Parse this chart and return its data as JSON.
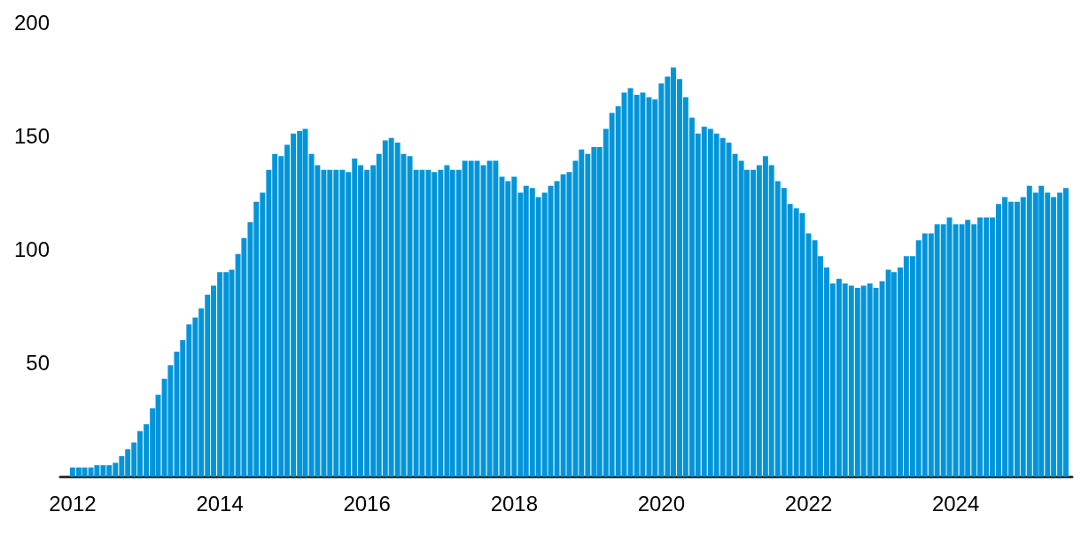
{
  "chart_data": {
    "type": "bar",
    "color": "#0095da",
    "x": [
      "2012-01",
      "2012-02",
      "2012-03",
      "2012-04",
      "2012-05",
      "2012-06",
      "2012-07",
      "2012-08",
      "2012-09",
      "2012-10",
      "2012-11",
      "2012-12",
      "2013-01",
      "2013-02",
      "2013-03",
      "2013-04",
      "2013-05",
      "2013-06",
      "2013-07",
      "2013-08",
      "2013-09",
      "2013-10",
      "2013-11",
      "2013-12",
      "2014-01",
      "2014-02",
      "2014-03",
      "2014-04",
      "2014-05",
      "2014-06",
      "2014-07",
      "2014-08",
      "2014-09",
      "2014-10",
      "2014-11",
      "2014-12",
      "2015-01",
      "2015-02",
      "2015-03",
      "2015-04",
      "2015-05",
      "2015-06",
      "2015-07",
      "2015-08",
      "2015-09",
      "2015-10",
      "2015-11",
      "2015-12",
      "2016-01",
      "2016-02",
      "2016-03",
      "2016-04",
      "2016-05",
      "2016-06",
      "2016-07",
      "2016-08",
      "2016-09",
      "2016-10",
      "2016-11",
      "2016-12",
      "2017-01",
      "2017-02",
      "2017-03",
      "2017-04",
      "2017-05",
      "2017-06",
      "2017-07",
      "2017-08",
      "2017-09",
      "2017-10",
      "2017-11",
      "2017-12",
      "2018-01",
      "2018-02",
      "2018-03",
      "2018-04",
      "2018-05",
      "2018-06",
      "2018-07",
      "2018-08",
      "2018-09",
      "2018-10",
      "2018-11",
      "2018-12",
      "2019-01",
      "2019-02",
      "2019-03",
      "2019-04",
      "2019-05",
      "2019-06",
      "2019-07",
      "2019-08",
      "2019-09",
      "2019-10",
      "2019-11",
      "2019-12",
      "2020-01",
      "2020-02",
      "2020-03",
      "2020-04",
      "2020-05",
      "2020-06",
      "2020-07",
      "2020-08",
      "2020-09",
      "2020-10",
      "2020-11",
      "2020-12",
      "2021-01",
      "2021-02",
      "2021-03",
      "2021-04",
      "2021-05",
      "2021-06",
      "2021-07",
      "2021-08",
      "2021-09",
      "2021-10",
      "2021-11",
      "2021-12",
      "2022-01",
      "2022-02",
      "2022-03",
      "2022-04",
      "2022-05",
      "2022-06",
      "2022-07",
      "2022-08",
      "2022-09",
      "2022-10",
      "2022-11",
      "2022-12",
      "2023-01",
      "2023-02",
      "2023-03",
      "2023-04",
      "2023-05",
      "2023-06",
      "2023-07",
      "2023-08",
      "2023-09",
      "2023-10",
      "2023-11",
      "2023-12",
      "2024-01",
      "2024-02",
      "2024-03",
      "2024-04",
      "2024-05",
      "2024-06",
      "2024-07",
      "2024-08",
      "2024-09",
      "2024-10",
      "2024-11",
      "2024-12",
      "2025-01",
      "2025-02",
      "2025-03",
      "2025-04",
      "2025-05",
      "2025-06",
      "2025-07"
    ],
    "values": [
      4,
      4,
      4,
      4,
      5,
      5,
      5,
      6,
      9,
      12,
      15,
      20,
      23,
      30,
      36,
      43,
      49,
      55,
      60,
      67,
      70,
      74,
      80,
      84,
      90,
      90,
      91,
      98,
      105,
      112,
      121,
      125,
      135,
      142,
      141,
      146,
      151,
      152,
      153,
      142,
      137,
      135,
      135,
      135,
      135,
      134,
      140,
      137,
      135,
      137,
      142,
      148,
      149,
      147,
      142,
      141,
      135,
      135,
      135,
      134,
      135,
      137,
      135,
      135,
      139,
      139,
      139,
      137,
      139,
      139,
      132,
      130,
      132,
      125,
      128,
      127,
      123,
      125,
      128,
      130,
      133,
      134,
      139,
      144,
      142,
      145,
      145,
      153,
      160,
      163,
      169,
      171,
      168,
      169,
      167,
      166,
      173,
      176,
      180,
      175,
      167,
      158,
      151,
      154,
      153,
      151,
      149,
      147,
      142,
      139,
      135,
      135,
      137,
      141,
      137,
      130,
      127,
      120,
      118,
      116,
      107,
      104,
      97,
      92,
      85,
      87,
      85,
      84,
      83,
      84,
      85,
      83,
      86,
      91,
      90,
      92,
      97,
      97,
      104,
      107,
      107,
      111,
      111,
      114,
      111,
      111,
      113,
      111,
      114,
      114,
      114,
      120,
      123,
      121,
      121,
      123,
      128,
      125,
      128,
      125,
      123,
      125,
      127
    ],
    "xlim": [
      "2011-11",
      "2025-08"
    ],
    "xticks": [
      "2012",
      "2014",
      "2016",
      "2018",
      "2020",
      "2022",
      "2024"
    ],
    "ylim": [
      0,
      200
    ],
    "yticks": [
      50,
      100,
      150,
      200
    ],
    "grid": false
  }
}
